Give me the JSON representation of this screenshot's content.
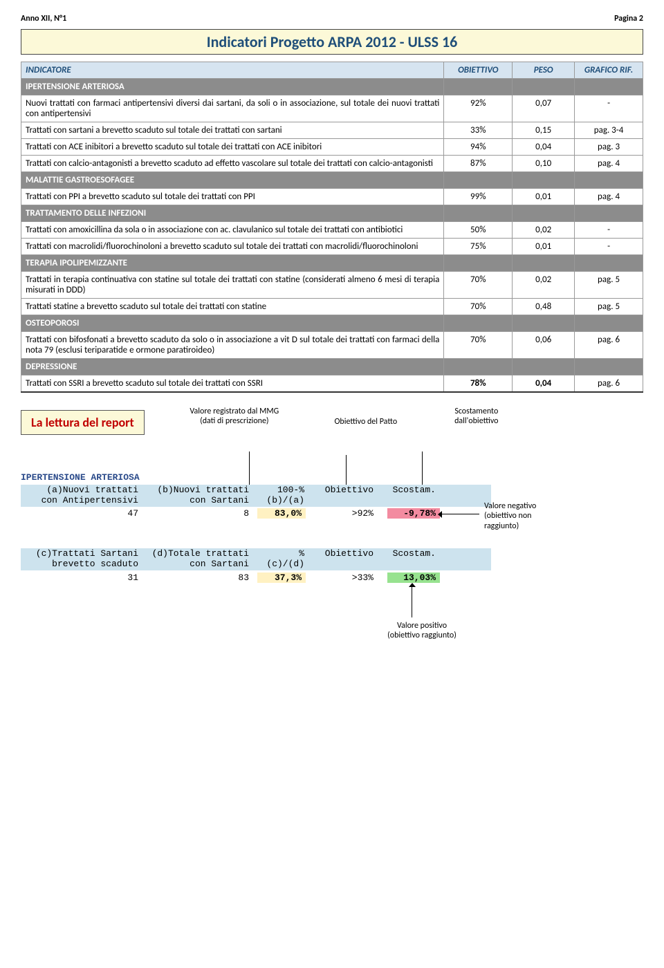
{
  "header": {
    "left": "Anno XII, N°1",
    "right": "Pagina 2"
  },
  "title": "Indicatori Progetto ARPA 2012 - ULSS 16",
  "columns": {
    "c1": "INDICATORE",
    "c2": "OBIETTIVO",
    "c3": "PESO",
    "c4": "GRAFICO RIF."
  },
  "sections": [
    {
      "name": "IPERTENSIONE ARTERIOSA",
      "rows": [
        {
          "desc": "Nuovi trattati con farmaci antipertensivi diversi dai sartani, da soli o in associazione, sul totale dei nuovi trattati con antipertensivi",
          "ob": "92%",
          "peso": "0,07",
          "rif": "-"
        },
        {
          "desc": "Trattati con sartani a brevetto scaduto sul totale dei trattati con sartani",
          "ob": "33%",
          "peso": "0,15",
          "rif": "pag. 3-4"
        },
        {
          "desc": "Trattati con  ACE inibitori a brevetto scaduto sul totale dei trattati con ACE inibitori",
          "ob": "94%",
          "peso": "0,04",
          "rif": "pag. 3"
        },
        {
          "desc": "Trattati con calcio-antagonisti a brevetto scaduto ad effetto vascolare sul totale dei trattati con calcio-antagonisti",
          "ob": "87%",
          "peso": "0,10",
          "rif": "pag. 4"
        }
      ]
    },
    {
      "name": "MALATTIE GASTROESOFAGEE",
      "rows": [
        {
          "desc": "Trattati con PPI a brevetto scaduto sul totale dei trattati con PPI",
          "ob": "99%",
          "peso": "0,01",
          "rif": "pag. 4"
        }
      ]
    },
    {
      "name": "TRATTAMENTO DELLE INFEZIONI",
      "rows": [
        {
          "desc": "Trattati con amoxicillina da sola o in associazione con ac. clavulanico sul totale dei trattati con antibiotici",
          "ob": "50%",
          "peso": "0,02",
          "rif": "-"
        },
        {
          "desc": "Trattati con macrolidi/fluorochinoloni a brevetto scaduto sul totale dei trattati con macrolidi/fluorochinoloni",
          "ob": "75%",
          "peso": "0,01",
          "rif": "-"
        }
      ]
    },
    {
      "name": "TERAPIA IPOLIPEMIZZANTE",
      "rows": [
        {
          "desc": "Trattati in terapia continuativa con statine sul totale dei trattati con statine (considerati almeno 6 mesi di terapia misurati in DDD)",
          "ob": "70%",
          "peso": "0,02",
          "rif": "pag. 5"
        },
        {
          "desc": "Trattati statine  a brevetto scaduto sul totale dei trattati con statine",
          "ob": "70%",
          "peso": "0,48",
          "rif": "pag. 5"
        }
      ]
    },
    {
      "name": "OSTEOPOROSI",
      "rows": [
        {
          "desc": "Trattati con bifosfonati a brevetto scaduto da solo o in associazione a vit D sul totale dei trattati con farmaci della nota 79 (esclusi teriparatide e ormone paratiroideo)",
          "ob": "70%",
          "peso": "0,06",
          "rif": "pag. 6"
        }
      ]
    },
    {
      "name": "DEPRESSIONE",
      "rows": [
        {
          "desc": "Trattati con  SSRI a brevetto scaduto sul totale dei trattati con SSRI",
          "ob": "78%",
          "peso": "0,04",
          "rif": "pag. 6"
        }
      ]
    }
  ],
  "lettura": {
    "title": "La lettura del report",
    "ann_mmg": "Valore registrato dal MMG\n(dati di prescrizione)",
    "ann_obiettivo": "Obiettivo del Patto",
    "ann_scost": "Scostamento\ndall'obiettivo",
    "ann_neg": "Valore negativo\n(obiettivo non\nraggiunto)",
    "ann_pos": "Valore positivo\n(obiettivo raggiunto)",
    "block1": {
      "title": "IPERTENSIONE ARTERIOSA",
      "col_a": "(a)Nuovi trattati\ncon Antipertensivi",
      "col_b": "(b)Nuovi trattati\ncon Sartani",
      "col_pct": "100-%\n(b)/(a)",
      "col_ob": "Obiettivo",
      "col_sc": "Scostam.",
      "val_a": "47",
      "val_b": "8",
      "val_pct": "83,0%",
      "val_ob": ">92%",
      "val_sc": "-9,78%"
    },
    "block2": {
      "col_c": "(c)Trattati Sartani\nbrevetto scaduto",
      "col_d": "(d)Totale trattati\ncon Sartani",
      "col_pct": "%\n(c)/(d)",
      "col_ob": "Obiettivo",
      "col_sc": "Scostam.",
      "val_c": "31",
      "val_d": "83",
      "val_pct": "37,3%",
      "val_ob": ">33%",
      "val_sc": "13,03%"
    }
  }
}
